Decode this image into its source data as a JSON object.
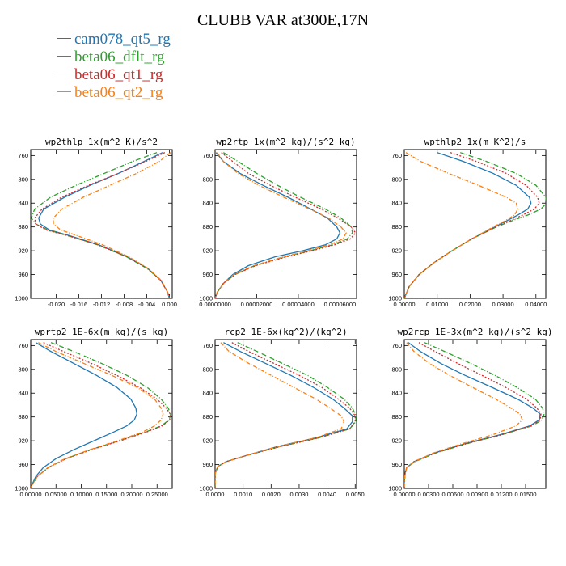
{
  "title": "CLUBB VAR at300E,17N",
  "legend": [
    {
      "name": "cam078_qt5_rg",
      "color": "#1f77b4",
      "dash": ""
    },
    {
      "name": "beta06_dflt_rg",
      "color": "#2ca02c",
      "dash": "6,2,1,2"
    },
    {
      "name": "beta06_qt1_rg",
      "color": "#d62728",
      "dash": "2,2"
    },
    {
      "name": "beta06_qt2_rg",
      "color": "#ff7f0e",
      "dash": "5,2,1,2"
    }
  ],
  "chart_data": [
    {
      "type": "line",
      "title": "wp2thlp  1x(m^2 K)/s^2",
      "xlim": [
        -0.0245,
        0.0005
      ],
      "ylim": [
        1000,
        750
      ],
      "xticks": [
        -0.02,
        -0.016,
        -0.012,
        -0.008,
        -0.004,
        0.0
      ],
      "xtick_labels": [
        "-0.020",
        "-0.016",
        "-0.012",
        "-0.008",
        "-0.004",
        "0.000"
      ],
      "yticks": [
        760,
        800,
        840,
        880,
        920,
        960,
        1000
      ],
      "y": [
        755,
        770,
        790,
        810,
        830,
        850,
        865,
        875,
        885,
        895,
        910,
        930,
        950,
        970,
        990,
        1000
      ],
      "series": [
        {
          "name": "cam078_qt5_rg",
          "values": [
            -0.0012,
            -0.0045,
            -0.009,
            -0.014,
            -0.0185,
            -0.0222,
            -0.0231,
            -0.0228,
            -0.0212,
            -0.0175,
            -0.0125,
            -0.0075,
            -0.0038,
            -0.0015,
            -0.0003,
            0.0
          ]
        },
        {
          "name": "beta06_dflt_rg",
          "values": [
            -0.0022,
            -0.0065,
            -0.0115,
            -0.0165,
            -0.021,
            -0.0238,
            -0.0244,
            -0.0236,
            -0.0215,
            -0.0178,
            -0.0127,
            -0.0076,
            -0.0039,
            -0.0015,
            -0.0003,
            0.0
          ]
        },
        {
          "name": "beta06_qt1_rg",
          "values": [
            -0.0008,
            -0.0042,
            -0.009,
            -0.0143,
            -0.019,
            -0.0225,
            -0.0238,
            -0.0236,
            -0.0218,
            -0.0178,
            -0.0126,
            -0.0075,
            -0.0038,
            -0.0015,
            -0.0003,
            0.0
          ]
        },
        {
          "name": "beta06_qt2_rg",
          "values": [
            0.0002,
            -0.0018,
            -0.0058,
            -0.0105,
            -0.0152,
            -0.019,
            -0.0205,
            -0.0205,
            -0.0192,
            -0.0162,
            -0.0118,
            -0.0072,
            -0.0037,
            -0.0014,
            -0.0003,
            0.0
          ]
        }
      ]
    },
    {
      "type": "line",
      "title": "wp2rtp  1x(m^2 kg)/(s^2 kg)",
      "xlim": [
        0,
        6.8e-05
      ],
      "ylim": [
        1000,
        750
      ],
      "xticks": [
        0,
        2e-05,
        4e-05,
        6e-05
      ],
      "xtick_labels": [
        "0.00000000",
        "0.00002000",
        "0.00004000",
        "0.00006000"
      ],
      "yticks": [
        760,
        800,
        840,
        880,
        920,
        960,
        1000
      ],
      "y": [
        755,
        770,
        790,
        810,
        830,
        850,
        865,
        880,
        890,
        900,
        910,
        920,
        930,
        945,
        960,
        975,
        990,
        1000
      ],
      "series": [
        {
          "name": "cam078_qt5_rg",
          "values": [
            5e-07,
            4e-06,
            1.2e-05,
            2.3e-05,
            3.5e-05,
            4.6e-05,
            5.4e-05,
            5.85e-05,
            6e-05,
            5.85e-05,
            5.3e-05,
            4.2e-05,
            2.9e-05,
            1.6e-05,
            8.5e-06,
            4e-06,
            1e-06,
            0
          ]
        },
        {
          "name": "beta06_dflt_rg",
          "values": [
            4e-06,
            1.1e-05,
            2e-05,
            3e-05,
            4.1e-05,
            5.3e-05,
            6.05e-05,
            6.55e-05,
            6.6e-05,
            6.35e-05,
            5.65e-05,
            4.55e-05,
            3.35e-05,
            1.9e-05,
            9.5e-06,
            4e-06,
            1e-06,
            0
          ]
        },
        {
          "name": "beta06_qt1_rg",
          "values": [
            3e-06,
            8.5e-06,
            1.6e-05,
            2.65e-05,
            3.85e-05,
            5.1e-05,
            5.9e-05,
            6.55e-05,
            6.75e-05,
            6.5e-05,
            5.75e-05,
            4.65e-05,
            3.45e-05,
            1.95e-05,
            9.5e-06,
            4e-06,
            1e-06,
            0
          ]
        },
        {
          "name": "beta06_qt2_rg",
          "values": [
            1e-06,
            4e-06,
            1.1e-05,
            2.1e-05,
            3.3e-05,
            4.55e-05,
            5.45e-05,
            6.05e-05,
            6.3e-05,
            6.15e-05,
            5.5e-05,
            4.45e-05,
            3.3e-05,
            1.85e-05,
            9e-06,
            4e-06,
            1e-06,
            0
          ]
        }
      ]
    },
    {
      "type": "line",
      "title": "wpthlp2  1x(m K^2)/s",
      "xlim": [
        0,
        0.043
      ],
      "ylim": [
        1000,
        750
      ],
      "xticks": [
        0,
        0.01,
        0.02,
        0.03,
        0.04
      ],
      "xtick_labels": [
        "0.00000",
        "0.01000",
        "0.02000",
        "0.03000",
        "0.04000"
      ],
      "yticks": [
        760,
        800,
        840,
        880,
        920,
        960,
        1000
      ],
      "y": [
        755,
        770,
        790,
        810,
        830,
        840,
        850,
        860,
        870,
        880,
        900,
        920,
        940,
        960,
        980,
        1000
      ],
      "series": [
        {
          "name": "cam078_qt5_rg",
          "values": [
            0.01,
            0.018,
            0.027,
            0.034,
            0.038,
            0.0385,
            0.0375,
            0.0345,
            0.031,
            0.0275,
            0.0205,
            0.0145,
            0.009,
            0.0045,
            0.0015,
            0
          ]
        },
        {
          "name": "beta06_dflt_rg",
          "values": [
            0.017,
            0.025,
            0.034,
            0.04,
            0.043,
            0.0432,
            0.0415,
            0.0375,
            0.0325,
            0.028,
            0.0205,
            0.0145,
            0.009,
            0.0045,
            0.0015,
            0
          ]
        },
        {
          "name": "beta06_qt1_rg",
          "values": [
            0.014,
            0.022,
            0.031,
            0.037,
            0.0405,
            0.041,
            0.0395,
            0.036,
            0.032,
            0.0278,
            0.0205,
            0.0145,
            0.009,
            0.0045,
            0.0015,
            0
          ]
        },
        {
          "name": "beta06_qt2_rg",
          "values": [
            0.0005,
            0.005,
            0.0135,
            0.0225,
            0.031,
            0.034,
            0.0345,
            0.0335,
            0.0305,
            0.027,
            0.0205,
            0.0145,
            0.009,
            0.0045,
            0.0015,
            0
          ]
        }
      ]
    },
    {
      "type": "line",
      "title": "wprtp2  1E-6x(m kg)/(s kg)",
      "xlim": [
        0,
        0.28
      ],
      "ylim": [
        1000,
        750
      ],
      "xticks": [
        0,
        0.05,
        0.1,
        0.15,
        0.2,
        0.25
      ],
      "xtick_labels": [
        "0.00000",
        "0.05000",
        "0.10000",
        "0.15000",
        "0.20000",
        "0.25000"
      ],
      "yticks": [
        760,
        800,
        840,
        880,
        920,
        960,
        1000
      ],
      "y": [
        755,
        770,
        790,
        810,
        830,
        850,
        865,
        875,
        885,
        895,
        905,
        920,
        935,
        950,
        965,
        980,
        995,
        1000
      ],
      "series": [
        {
          "name": "cam078_qt5_rg",
          "values": [
            0.01,
            0.04,
            0.085,
            0.13,
            0.17,
            0.198,
            0.208,
            0.21,
            0.205,
            0.19,
            0.165,
            0.125,
            0.085,
            0.05,
            0.025,
            0.01,
            0.002,
            0
          ]
        },
        {
          "name": "beta06_dflt_rg",
          "values": [
            0.04,
            0.085,
            0.14,
            0.19,
            0.23,
            0.258,
            0.272,
            0.277,
            0.274,
            0.258,
            0.228,
            0.175,
            0.118,
            0.07,
            0.035,
            0.013,
            0.002,
            0
          ]
        },
        {
          "name": "beta06_qt1_rg",
          "values": [
            0.025,
            0.065,
            0.12,
            0.17,
            0.215,
            0.25,
            0.268,
            0.276,
            0.275,
            0.26,
            0.23,
            0.177,
            0.12,
            0.07,
            0.035,
            0.013,
            0.002,
            0
          ]
        },
        {
          "name": "beta06_qt2_rg",
          "values": [
            0.015,
            0.05,
            0.105,
            0.16,
            0.21,
            0.245,
            0.258,
            0.262,
            0.258,
            0.245,
            0.222,
            0.172,
            0.117,
            0.068,
            0.034,
            0.013,
            0.002,
            0
          ]
        }
      ]
    },
    {
      "type": "line",
      "title": "rcp2  1E-6x(kg^2)/(kg^2)",
      "xlim": [
        0,
        0.00505
      ],
      "ylim": [
        1000,
        750
      ],
      "xticks": [
        0,
        0.001,
        0.002,
        0.003,
        0.004,
        0.005
      ],
      "xtick_labels": [
        "0.0000",
        "0.0010",
        "0.0020",
        "0.0030",
        "0.0040",
        "0.0050"
      ],
      "yticks": [
        760,
        800,
        840,
        880,
        920,
        960,
        1000
      ],
      "y": [
        755,
        770,
        790,
        810,
        830,
        850,
        865,
        878,
        888,
        900,
        915,
        930,
        945,
        955,
        963,
        975,
        990,
        1000
      ],
      "series": [
        {
          "name": "cam078_qt5_rg",
          "values": [
            0.0003,
            0.0009,
            0.0018,
            0.0027,
            0.0035,
            0.0042,
            0.0046,
            0.0049,
            0.0049,
            0.0047,
            0.0036,
            0.0022,
            0.0011,
            0.0004,
            0.0001,
            0,
            0,
            0
          ]
        },
        {
          "name": "beta06_dflt_rg",
          "values": [
            0.0008,
            0.0015,
            0.0024,
            0.0033,
            0.004,
            0.0046,
            0.0049,
            0.00503,
            0.00502,
            0.0048,
            0.0037,
            0.0023,
            0.0011,
            0.0004,
            0.0001,
            0,
            0,
            0
          ]
        },
        {
          "name": "beta06_qt1_rg",
          "values": [
            0.0006,
            0.0012,
            0.0021,
            0.003,
            0.0038,
            0.0044,
            0.0048,
            0.005,
            0.005,
            0.0048,
            0.0037,
            0.0023,
            0.0011,
            0.0004,
            0.0001,
            0,
            0,
            0
          ]
        },
        {
          "name": "beta06_qt2_rg",
          "values": [
            0.0002,
            0.0005,
            0.0012,
            0.002,
            0.0028,
            0.0036,
            0.0041,
            0.0045,
            0.0046,
            0.0045,
            0.0036,
            0.0022,
            0.0011,
            0.0004,
            0.0001,
            0,
            0,
            0
          ]
        }
      ]
    },
    {
      "type": "line",
      "title": "wp2rcp  1E-3x(m^2 kg)/(s^2 kg)",
      "xlim": [
        0,
        0.0175
      ],
      "ylim": [
        1000,
        750
      ],
      "xticks": [
        0,
        0.003,
        0.006,
        0.009,
        0.012,
        0.015
      ],
      "xtick_labels": [
        "0.00000",
        "0.00300",
        "0.00600",
        "0.00900",
        "0.01200",
        "0.01500"
      ],
      "yticks": [
        760,
        800,
        840,
        880,
        920,
        960,
        1000
      ],
      "y": [
        755,
        770,
        790,
        810,
        830,
        850,
        865,
        875,
        885,
        895,
        910,
        925,
        940,
        955,
        965,
        975,
        990,
        1000
      ],
      "series": [
        {
          "name": "cam078_qt5_rg",
          "values": [
            0.0005,
            0.002,
            0.0045,
            0.0075,
            0.0108,
            0.014,
            0.0159,
            0.0168,
            0.0167,
            0.0155,
            0.0118,
            0.0075,
            0.0038,
            0.0012,
            0.0003,
            0.0001,
            0,
            0
          ]
        },
        {
          "name": "beta06_dflt_rg",
          "values": [
            0.0025,
            0.005,
            0.0082,
            0.0112,
            0.0139,
            0.0162,
            0.0171,
            0.0173,
            0.017,
            0.0158,
            0.012,
            0.0077,
            0.004,
            0.0013,
            0.0003,
            0.0001,
            0,
            0
          ]
        },
        {
          "name": "beta06_qt1_rg",
          "values": [
            0.0018,
            0.0038,
            0.0066,
            0.0096,
            0.0125,
            0.0151,
            0.0164,
            0.0169,
            0.0168,
            0.0156,
            0.012,
            0.0076,
            0.0039,
            0.0012,
            0.0003,
            0.0001,
            0,
            0
          ]
        },
        {
          "name": "beta06_qt2_rg",
          "values": [
            0.0003,
            0.0012,
            0.0031,
            0.0056,
            0.0084,
            0.0113,
            0.0132,
            0.0143,
            0.0146,
            0.0138,
            0.0109,
            0.0071,
            0.0037,
            0.0012,
            0.0003,
            0.0001,
            0,
            0
          ]
        }
      ]
    }
  ]
}
